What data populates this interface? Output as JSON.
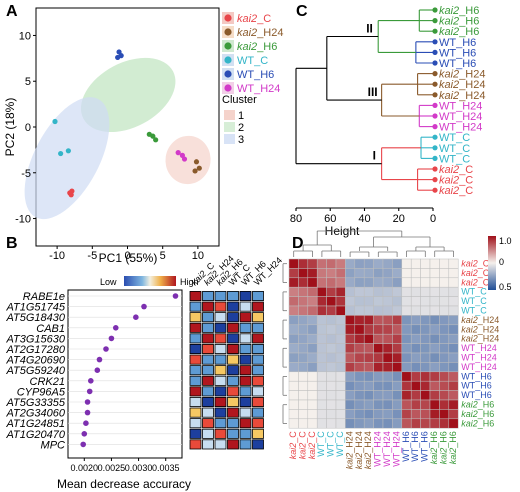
{
  "panels": {
    "A": "A",
    "B": "B",
    "C": "C",
    "D": "D"
  },
  "colors": {
    "kai2_C": "#e8454a",
    "kai2_H24": "#8a5a2b",
    "kai2_H6": "#3a9a3a",
    "WT_C": "#33b5c8",
    "WT_H6": "#2a4db5",
    "WT_H24": "#d23ac8"
  },
  "chart_data": [
    {
      "type": "scatter",
      "xlabel": "PC1 (55%)",
      "ylabel": "PC2 (18%)",
      "xlim": [
        -13,
        13
      ],
      "ylim": [
        -13,
        13
      ],
      "xticks": [
        "-10",
        "-5",
        "0",
        "5",
        "10"
      ],
      "yticks": [
        "10",
        "5",
        "0",
        "-5",
        "-10"
      ],
      "legend_title": "Cluster",
      "series": [
        {
          "name": "kai2_C",
          "points": [
            [
              -8.2,
              -7.2
            ],
            [
              -7.9,
              -7.0
            ],
            [
              -8.0,
              -7.4
            ]
          ]
        },
        {
          "name": "kai2_H24",
          "points": [
            [
              9.8,
              -3.8
            ],
            [
              10.2,
              -4.5
            ],
            [
              9.6,
              -4.8
            ]
          ]
        },
        {
          "name": "kai2_H6",
          "points": [
            [
              3.1,
              -0.8
            ],
            [
              4.0,
              -1.4
            ],
            [
              3.6,
              -1.0
            ]
          ]
        },
        {
          "name": "WT_C",
          "points": [
            [
              -10.3,
              0.6
            ],
            [
              -9.5,
              -2.9
            ],
            [
              -8.4,
              -2.6
            ]
          ]
        },
        {
          "name": "WT_H6",
          "points": [
            [
              -1.4,
              7.6
            ],
            [
              -0.9,
              7.8
            ],
            [
              -1.2,
              8.2
            ]
          ]
        },
        {
          "name": "WT_H24",
          "points": [
            [
              7.2,
              -2.8
            ],
            [
              7.8,
              -3.1
            ],
            [
              8.1,
              -3.5
            ]
          ]
        }
      ],
      "clusters": [
        "1",
        "2",
        "3"
      ]
    },
    {
      "type": "scatter",
      "xlabel": "Mean decrease accuracy",
      "legend_low": "Low",
      "legend_high": "High",
      "xticks": [
        "0.0020",
        "0.0025",
        "0.0030",
        "0.0035"
      ],
      "xlim": [
        0.0017,
        0.0038
      ],
      "genes": [
        "RABE1e",
        "AT1G51745",
        "AT5G18430",
        "CAB1",
        "AT3G15630",
        "AT2G17280",
        "AT4G20690",
        "AT5G59240",
        "CRK21",
        "CYP96A5",
        "AT5G33355",
        "AT2G34060",
        "AT1G24851",
        "AT1G20470",
        "MPC"
      ],
      "values": [
        0.00368,
        0.0031,
        0.00295,
        0.00258,
        0.0025,
        0.0024,
        0.00228,
        0.00224,
        0.00212,
        0.0021,
        0.00206,
        0.00206,
        0.00203,
        0.002,
        0.00198
      ],
      "samples": [
        "kai2_C",
        "kai2_H24",
        "kai2_H6",
        "WT_C",
        "WT_H6",
        "WT_H24"
      ],
      "matrix": [
        [
          1.0,
          0.1,
          0.2,
          0.1,
          0.0,
          0.2
        ],
        [
          0.2,
          1.0,
          0.8,
          0.0,
          0.3,
          0.9
        ],
        [
          0.5,
          0.1,
          0.3,
          0.0,
          0.9,
          0.6
        ],
        [
          0.9,
          0.1,
          0.0,
          0.9,
          0.1,
          0.2
        ],
        [
          0.1,
          0.9,
          0.8,
          0.0,
          0.4,
          1.0
        ],
        [
          0.0,
          0.8,
          0.3,
          0.9,
          0.1,
          0.2
        ],
        [
          0.8,
          0.1,
          0.1,
          0.6,
          0.0,
          0.2
        ],
        [
          0.2,
          0.1,
          0.6,
          0.0,
          0.9,
          0.1
        ],
        [
          0.1,
          0.9,
          0.3,
          0.1,
          0.9,
          0.8
        ],
        [
          0.9,
          0.2,
          0.0,
          0.8,
          0.1,
          0.3
        ],
        [
          0.3,
          0.0,
          0.9,
          0.5,
          0.0,
          0.8
        ],
        [
          0.6,
          0.3,
          0.0,
          0.9,
          0.3,
          0.2
        ],
        [
          0.4,
          0.8,
          0.1,
          0.2,
          0.9,
          0.7
        ],
        [
          0.0,
          0.3,
          0.8,
          0.2,
          0.1,
          0.6
        ],
        [
          0.8,
          0.4,
          0.3,
          0.9,
          0.2,
          0.0
        ]
      ]
    },
    {
      "type": "dendrogram",
      "xlabel": "Height",
      "xticks": [
        "80",
        "60",
        "40",
        "20",
        "0"
      ],
      "xlim": [
        80,
        0
      ],
      "cluster_labels": [
        "I",
        "II",
        "III"
      ],
      "leaves": [
        {
          "label": "kai2_H6",
          "group": "kai2_H6"
        },
        {
          "label": "kai2_H6",
          "group": "kai2_H6"
        },
        {
          "label": "kai2_H6",
          "group": "kai2_H6"
        },
        {
          "label": "WT_H6",
          "group": "WT_H6"
        },
        {
          "label": "WT_H6",
          "group": "WT_H6"
        },
        {
          "label": "WT_H6",
          "group": "WT_H6"
        },
        {
          "label": "kai2_H24",
          "group": "kai2_H24"
        },
        {
          "label": "kai2_H24",
          "group": "kai2_H24"
        },
        {
          "label": "kai2_H24",
          "group": "kai2_H24"
        },
        {
          "label": "WT_H24",
          "group": "WT_H24"
        },
        {
          "label": "WT_H24",
          "group": "WT_H24"
        },
        {
          "label": "WT_H24",
          "group": "WT_H24"
        },
        {
          "label": "WT_C",
          "group": "WT_C"
        },
        {
          "label": "WT_C",
          "group": "WT_C"
        },
        {
          "label": "WT_C",
          "group": "WT_C"
        },
        {
          "label": "kai2_C",
          "group": "kai2_C"
        },
        {
          "label": "kai2_C",
          "group": "kai2_C"
        },
        {
          "label": "kai2_C",
          "group": "kai2_C"
        }
      ]
    },
    {
      "type": "heatmap",
      "colorbar_ticks": [
        "1.0",
        "0.5"
      ],
      "colorbar_mid": "0",
      "row_labels": [
        "kai2_C",
        "kai2_C",
        "kai2_C",
        "WT_C",
        "WT_C",
        "WT_C",
        "kai2_H24",
        "kai2_H24",
        "kai2_H24",
        "WT_H24",
        "WT_H24",
        "WT_H24",
        "WT_H6",
        "WT_H6",
        "WT_H6",
        "kai2_H6",
        "kai2_H6",
        "kai2_H6"
      ],
      "col_labels": [
        "kai2_C",
        "kai2_C",
        "kai2_C",
        "WT_C",
        "WT_C",
        "WT_C",
        "kai2_H24",
        "kai2_H24",
        "kai2_H24",
        "WT_H24",
        "WT_H24",
        "WT_H24",
        "WT_H6",
        "WT_H6",
        "WT_H6",
        "kai2_H6",
        "kai2_H6",
        "kai2_H6"
      ],
      "groups": [
        "kai2_C",
        "WT_C",
        "kai2_H24",
        "WT_H24",
        "WT_H6",
        "kai2_H6"
      ],
      "block_correlation": [
        [
          0.95,
          0.6,
          -0.5,
          -0.5,
          0.0,
          0.0
        ],
        [
          0.6,
          0.95,
          -0.3,
          -0.3,
          -0.1,
          -0.1
        ],
        [
          -0.5,
          -0.3,
          0.95,
          0.8,
          -0.6,
          -0.6
        ],
        [
          -0.5,
          -0.3,
          0.8,
          0.95,
          -0.6,
          -0.6
        ],
        [
          0.0,
          -0.1,
          -0.6,
          -0.6,
          0.95,
          0.8
        ],
        [
          0.0,
          -0.1,
          -0.6,
          -0.6,
          0.8,
          0.95
        ]
      ]
    }
  ]
}
